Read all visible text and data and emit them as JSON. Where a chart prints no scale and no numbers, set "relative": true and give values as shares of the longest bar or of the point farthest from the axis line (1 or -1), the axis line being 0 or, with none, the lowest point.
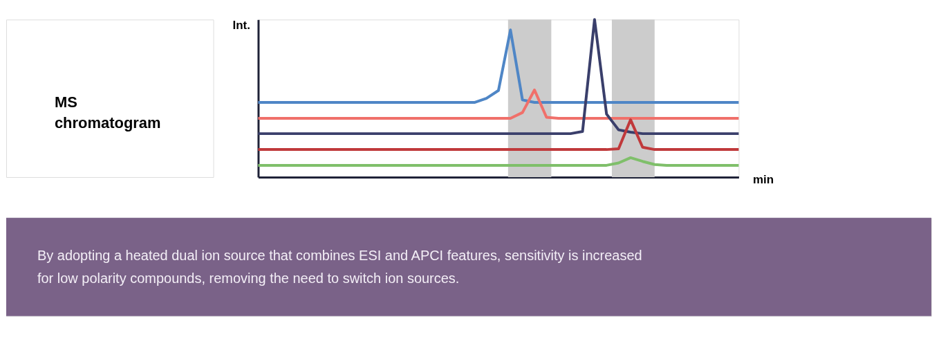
{
  "chart_data": {
    "type": "line",
    "title": "MS chromatogram",
    "ylabel": "Int.",
    "xlabel": "min",
    "relative": true,
    "line_style": "solid",
    "categories": [
      null,
      null,
      null,
      null,
      null,
      null,
      null,
      null,
      null,
      null,
      null,
      null,
      null,
      null,
      null,
      null,
      null,
      null,
      null,
      null,
      null,
      null,
      null,
      null,
      null,
      null,
      null,
      null,
      null,
      null,
      null,
      null,
      null,
      null,
      null,
      null,
      null,
      null,
      null,
      null,
      null
    ],
    "series": [
      {
        "color": "#4f86c6",
        "values": [
          0.474,
          0.474,
          0.474,
          0.474,
          0.474,
          0.474,
          0.474,
          0.474,
          0.474,
          0.474,
          0.474,
          0.474,
          0.474,
          0.474,
          0.474,
          0.474,
          0.474,
          0.474,
          0.474,
          0.5,
          0.55,
          0.934,
          0.49,
          0.474,
          0.474,
          0.474,
          0.474,
          0.474,
          0.474,
          0.474,
          0.474,
          0.474,
          0.474,
          0.474,
          0.474,
          0.474,
          0.474,
          0.474,
          0.474,
          0.474,
          0.474
        ]
      },
      {
        "color": "#f0706a",
        "values": [
          0.373,
          0.373,
          0.373,
          0.373,
          0.373,
          0.373,
          0.373,
          0.373,
          0.373,
          0.373,
          0.373,
          0.373,
          0.373,
          0.373,
          0.373,
          0.373,
          0.373,
          0.373,
          0.373,
          0.373,
          0.373,
          0.373,
          0.41,
          0.553,
          0.38,
          0.373,
          0.373,
          0.373,
          0.373,
          0.373,
          0.373,
          0.373,
          0.373,
          0.373,
          0.373,
          0.373,
          0.373,
          0.373,
          0.373,
          0.373,
          0.373
        ]
      },
      {
        "color": "#3a3f6b",
        "values": [
          0.276,
          0.276,
          0.276,
          0.276,
          0.276,
          0.276,
          0.276,
          0.276,
          0.276,
          0.276,
          0.276,
          0.276,
          0.276,
          0.276,
          0.276,
          0.276,
          0.276,
          0.276,
          0.276,
          0.276,
          0.276,
          0.276,
          0.276,
          0.276,
          0.276,
          0.276,
          0.276,
          0.29,
          1.0,
          0.4,
          0.3,
          0.285,
          0.276,
          0.276,
          0.276,
          0.276,
          0.276,
          0.276,
          0.276,
          0.276,
          0.276
        ]
      },
      {
        "color": "#c0393b",
        "values": [
          0.175,
          0.175,
          0.175,
          0.175,
          0.175,
          0.175,
          0.175,
          0.175,
          0.175,
          0.175,
          0.175,
          0.175,
          0.175,
          0.175,
          0.175,
          0.175,
          0.175,
          0.175,
          0.175,
          0.175,
          0.175,
          0.175,
          0.175,
          0.175,
          0.175,
          0.175,
          0.175,
          0.175,
          0.175,
          0.175,
          0.18,
          0.364,
          0.19,
          0.175,
          0.175,
          0.175,
          0.175,
          0.175,
          0.175,
          0.175,
          0.175
        ]
      },
      {
        "color": "#7fbf6a",
        "values": [
          0.075,
          0.075,
          0.075,
          0.075,
          0.075,
          0.075,
          0.075,
          0.075,
          0.075,
          0.075,
          0.075,
          0.075,
          0.075,
          0.075,
          0.075,
          0.075,
          0.075,
          0.075,
          0.075,
          0.075,
          0.075,
          0.075,
          0.075,
          0.075,
          0.075,
          0.075,
          0.075,
          0.075,
          0.075,
          0.075,
          0.09,
          0.123,
          0.1,
          0.08,
          0.075,
          0.075,
          0.075,
          0.075,
          0.075,
          0.075,
          0.075
        ]
      }
    ],
    "annotations": [
      "By adopting a heated dual ion source that combines ESI and APCI features, sensitivity is increased for low polarity compounds, removing the need to switch ion sources."
    ]
  }
}
